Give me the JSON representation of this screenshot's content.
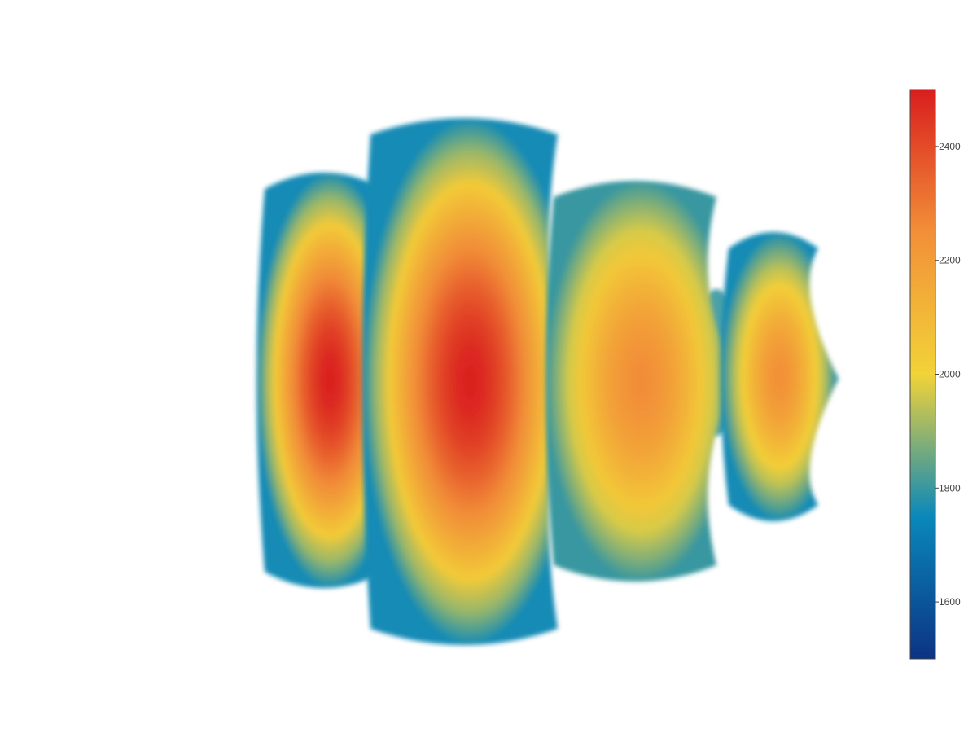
{
  "chart_data": {
    "type": "volume",
    "title": "",
    "colorscale": [
      [
        0.0,
        "#0c3383"
      ],
      [
        0.25,
        "#0a88ba"
      ],
      [
        0.5,
        "#f2d338"
      ],
      [
        0.75,
        "#f28f38"
      ],
      [
        1.0,
        "#d91e1e"
      ]
    ],
    "colorbar": {
      "range": [
        1500,
        2500
      ],
      "ticks": [
        1600,
        1800,
        2000,
        2200,
        2400
      ],
      "tick_labels": [
        "1600",
        "1800",
        "2000",
        "2200",
        "2400"
      ]
    },
    "lobes": [
      {
        "peak_value": 2500,
        "edge_value": 1760
      },
      {
        "peak_value": 2500,
        "edge_value": 1760
      },
      {
        "peak_value": 2260,
        "edge_value": 1800
      },
      {
        "peak_value": 2250,
        "edge_value": 1760
      }
    ]
  }
}
